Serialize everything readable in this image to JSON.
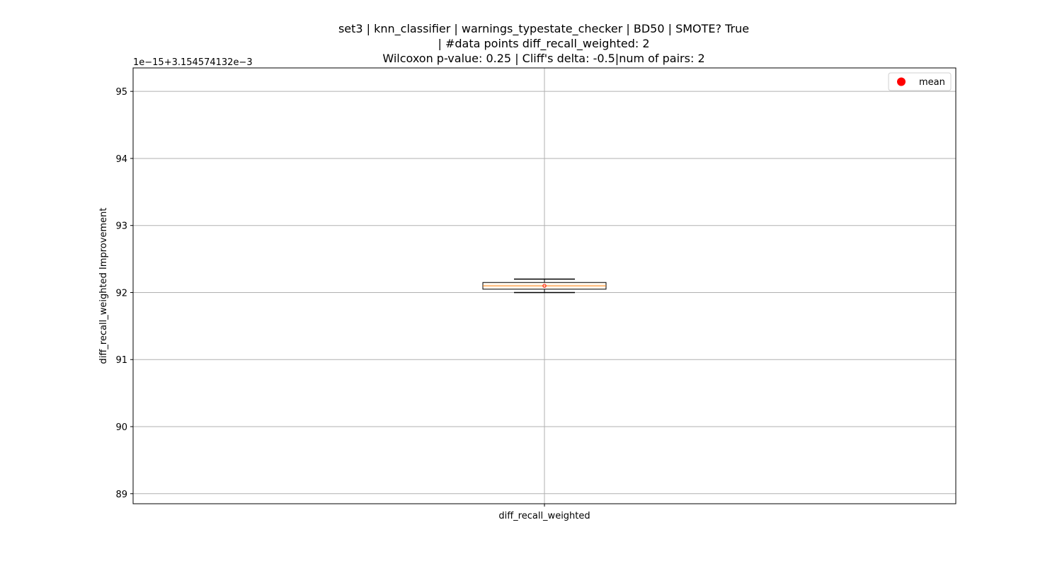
{
  "chart_data": {
    "type": "box",
    "title_lines": [
      "set3 | knn_classifier | warnings_typestate_checker | BD50 | SMOTE? True",
      "| #data points diff_recall_weighted: 2",
      "Wilcoxon p-value: 0.25 | Cliff's delta: -0.5|num of pairs: 2"
    ],
    "offset_text": "1e−15+3.154574132e−3",
    "ylabel": "diff_recall_weighted Improvement",
    "xlabel": "",
    "categories": [
      "diff_recall_weighted"
    ],
    "ylim": [
      88.85,
      95.35
    ],
    "yticks": [
      89,
      90,
      91,
      92,
      93,
      94,
      95
    ],
    "grid": true,
    "legend": {
      "position": "top-right",
      "entries": [
        {
          "label": "mean",
          "marker": "circle",
          "color": "#ff0000"
        }
      ]
    },
    "boxes": [
      {
        "category": "diff_recall_weighted",
        "whisker_low": 92.0,
        "q1": 92.05,
        "median": 92.1,
        "q3": 92.15,
        "whisker_high": 92.2,
        "mean": 92.1
      }
    ],
    "colors": {
      "box": "#000000",
      "box_fill": "#fff8ee",
      "median": "#ff7f0e",
      "mean": "#ff0000",
      "grid": "#b0b0b0"
    }
  }
}
